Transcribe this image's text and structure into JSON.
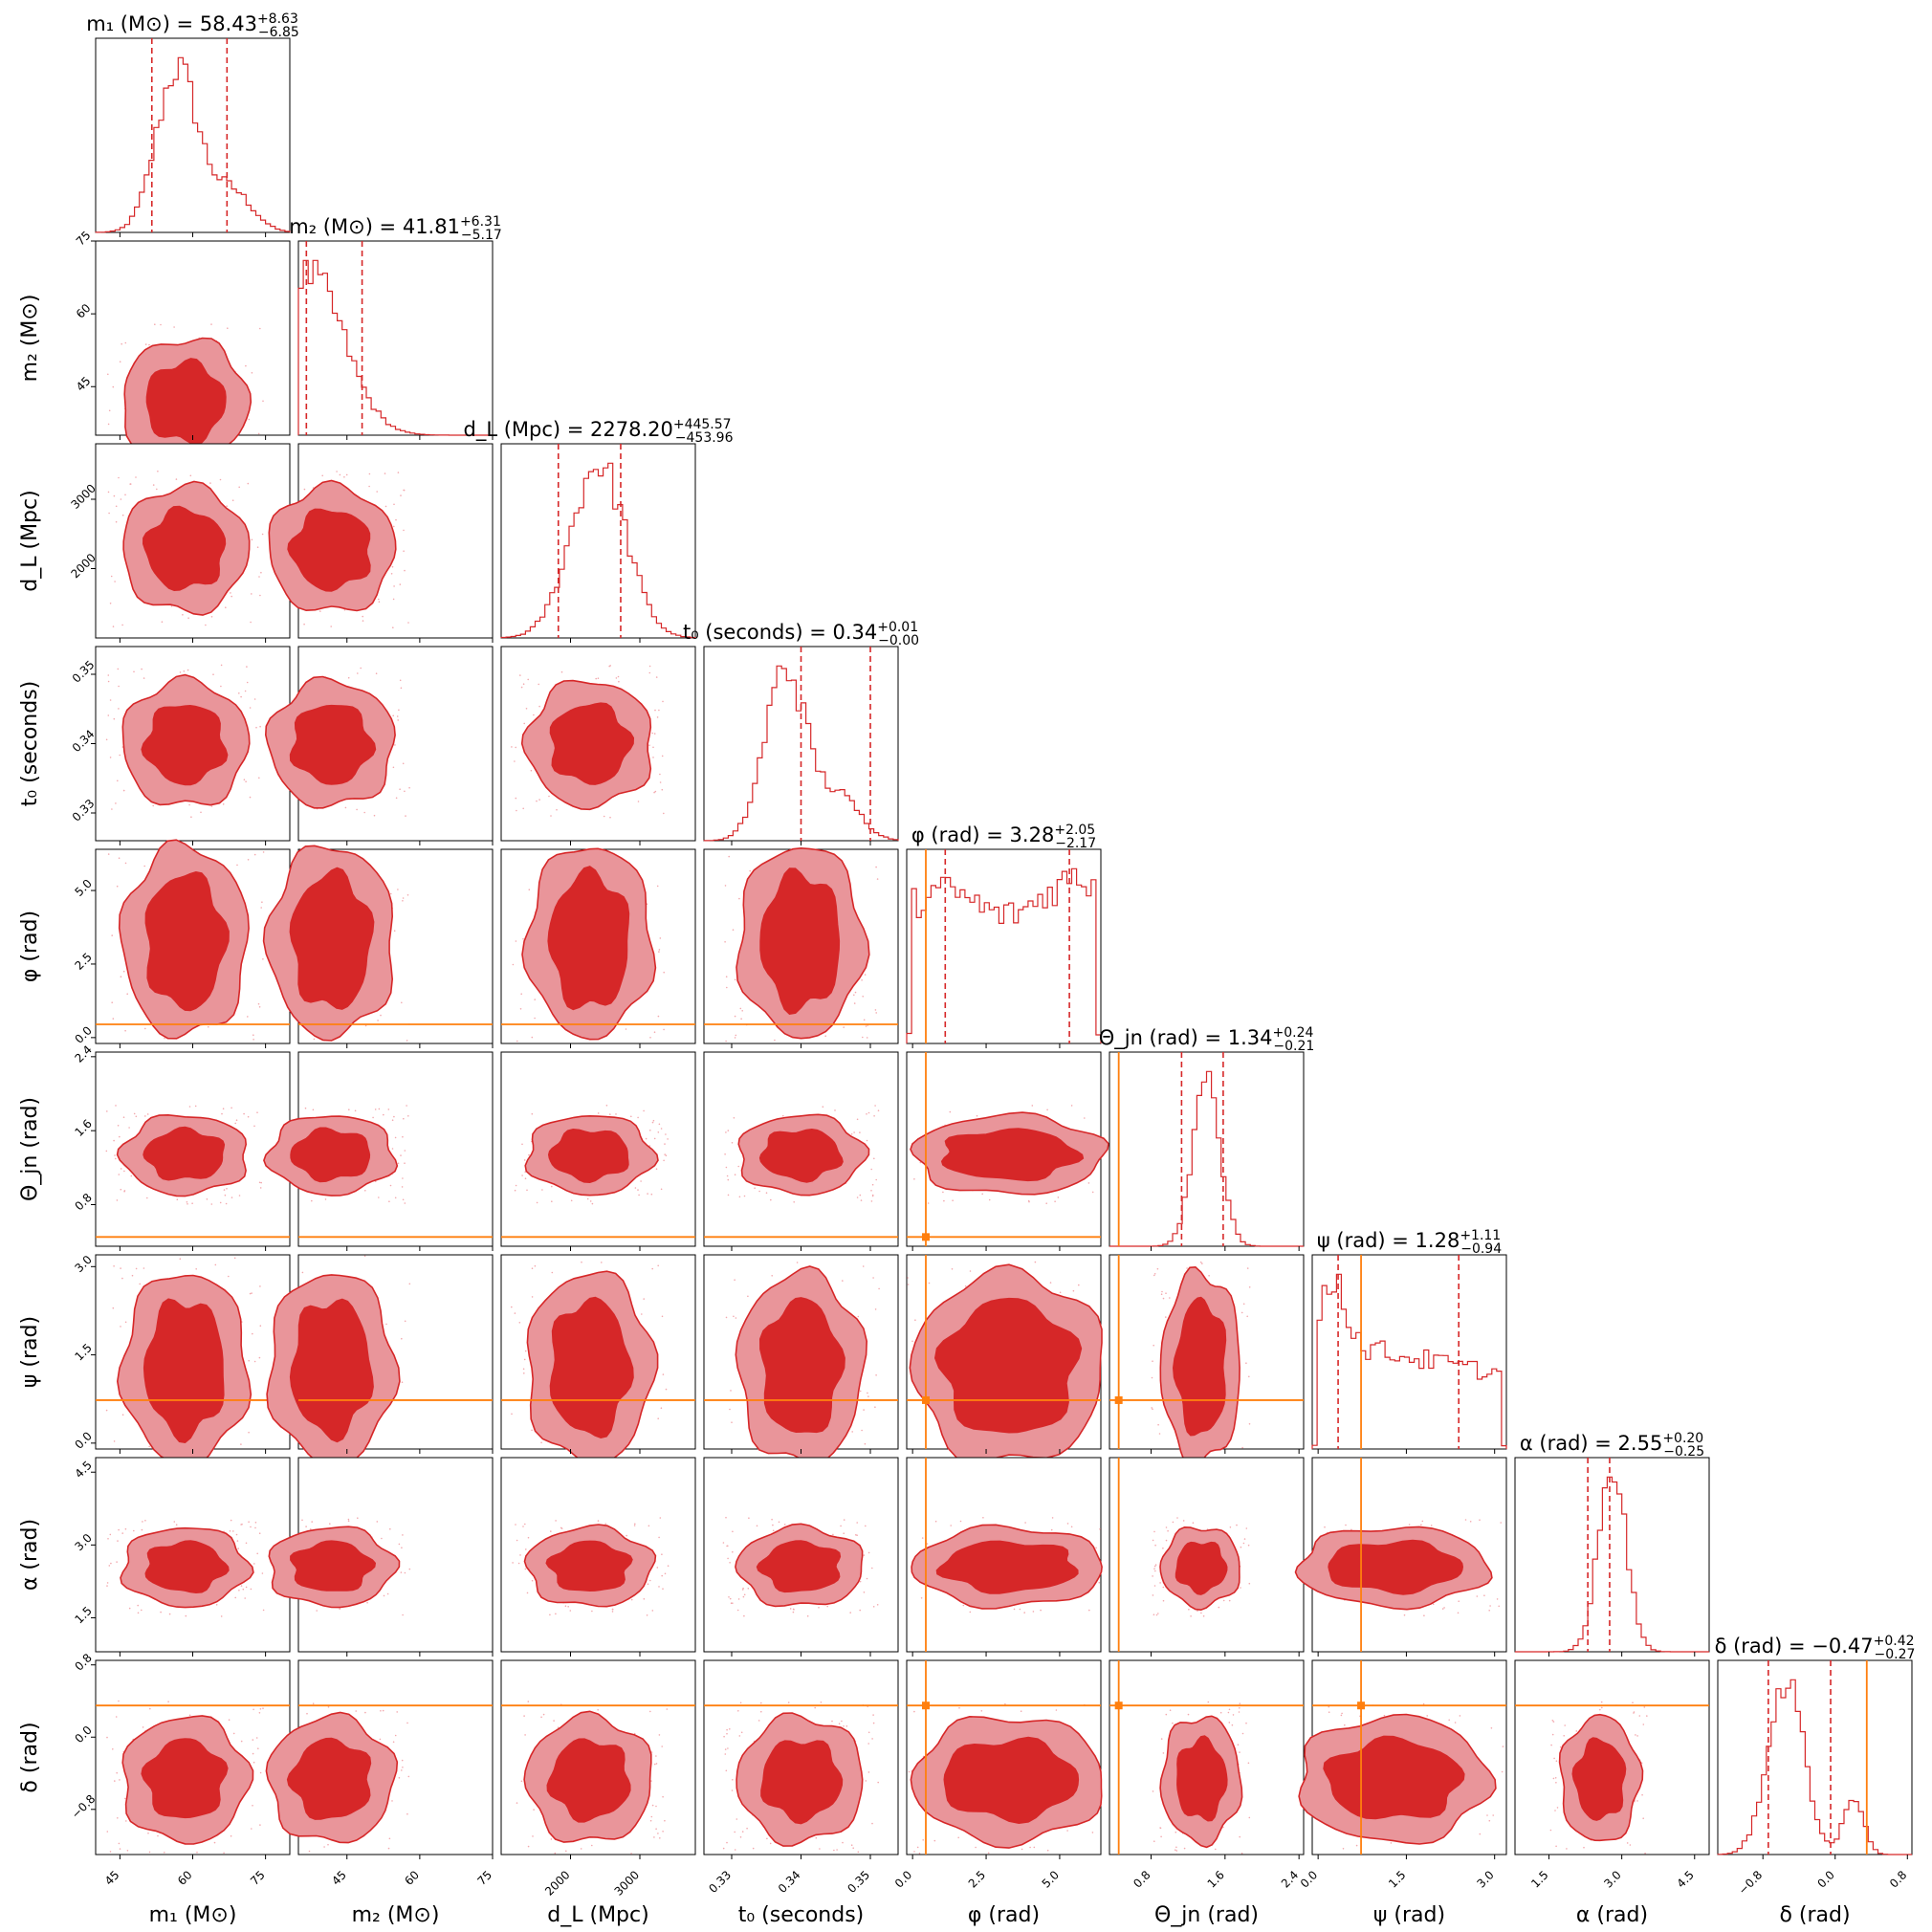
{
  "chart_data": {
    "type": "corner",
    "parameters": [
      {
        "key": "m1",
        "label": "m₁ (M⊙)",
        "title": "m₁ (M⊙) = 58.43",
        "median": 58.43,
        "plus": "+8.63",
        "minus": "−6.85",
        "range": [
          40,
          80
        ],
        "ticks": [
          45,
          60,
          75
        ],
        "tick_labels": [
          "45",
          "60",
          "75"
        ],
        "shape": "skew"
      },
      {
        "key": "m2",
        "label": "m₂ (M⊙)",
        "title": "m₂ (M⊙) = 41.81",
        "median": 41.81,
        "plus": "+6.31",
        "minus": "−5.17",
        "range": [
          35,
          75
        ],
        "ticks": [
          45,
          60,
          75
        ],
        "tick_labels": [
          "45",
          "60",
          "75"
        ],
        "shape": "decay"
      },
      {
        "key": "dL",
        "label": "d_L (Mpc)",
        "title": "d_L (Mpc) = 2278.20",
        "median": 2278.2,
        "plus": "+445.57",
        "minus": "−453.96",
        "range": [
          1000,
          3800
        ],
        "ticks": [
          2000,
          3000
        ],
        "tick_labels": [
          "2000",
          "3000"
        ],
        "shape": "gauss"
      },
      {
        "key": "t0",
        "label": "t₀ (seconds)",
        "title": "t₀ (seconds) = 0.34",
        "median": 0.34,
        "plus": "+0.01",
        "minus": "−0.00",
        "range": [
          0.326,
          0.354
        ],
        "ticks": [
          0.33,
          0.34,
          0.35
        ],
        "tick_labels": [
          "0.33",
          "0.34",
          "0.35"
        ],
        "shape": "skew"
      },
      {
        "key": "phi",
        "label": "φ (rad)",
        "title": "φ (rad) = 3.28",
        "median": 3.28,
        "plus": "+2.05",
        "minus": "−2.17",
        "range": [
          -0.2,
          6.4
        ],
        "ticks": [
          0,
          2.5,
          5
        ],
        "tick_labels": [
          "0.0",
          "2.5",
          "5.0"
        ],
        "shape": "flat",
        "truth": 0.45
      },
      {
        "key": "theta",
        "label": "Θ_jn (rad)",
        "title": "Θ_jn (rad) = 1.34",
        "median": 1.34,
        "plus": "+0.24",
        "minus": "−0.21",
        "range": [
          0.35,
          2.45
        ],
        "ticks": [
          0.8,
          1.6,
          2.4
        ],
        "tick_labels": [
          "0.8",
          "1.6",
          "2.4"
        ],
        "shape": "narrow",
        "truth": 0.45
      },
      {
        "key": "psi",
        "label": "ψ (rad)",
        "title": "ψ (rad) = 1.28",
        "median": 1.28,
        "plus": "+1.11",
        "minus": "−0.94",
        "range": [
          -0.1,
          3.2
        ],
        "ticks": [
          0,
          1.5,
          3
        ],
        "tick_labels": [
          "0.0",
          "1.5",
          "3.0"
        ],
        "shape": "psi",
        "truth": 0.73
      },
      {
        "key": "alpha",
        "label": "α (rad)",
        "title": "α (rad) = 2.55",
        "median": 2.55,
        "plus": "+0.20",
        "minus": "−0.25",
        "range": [
          0.8,
          4.8
        ],
        "ticks": [
          1.5,
          3,
          4.5
        ],
        "tick_labels": [
          "1.5",
          "3.0",
          "4.5"
        ],
        "shape": "narrow"
      },
      {
        "key": "delta",
        "label": "δ (rad)",
        "title": "δ (rad) = −0.47",
        "median": -0.47,
        "plus": "+0.42",
        "minus": "−0.27",
        "range": [
          -1.3,
          0.85
        ],
        "ticks": [
          -0.8,
          0,
          0.8
        ],
        "tick_labels": [
          "−0.8",
          "0.0",
          "0.8"
        ],
        "shape": "delta",
        "truth": 0.35
      }
    ],
    "colors": {
      "posterior": "#d62728",
      "contour_inner": "#d62728",
      "contour_outer": "#e9959a",
      "truth": "#ff7f0e"
    }
  }
}
